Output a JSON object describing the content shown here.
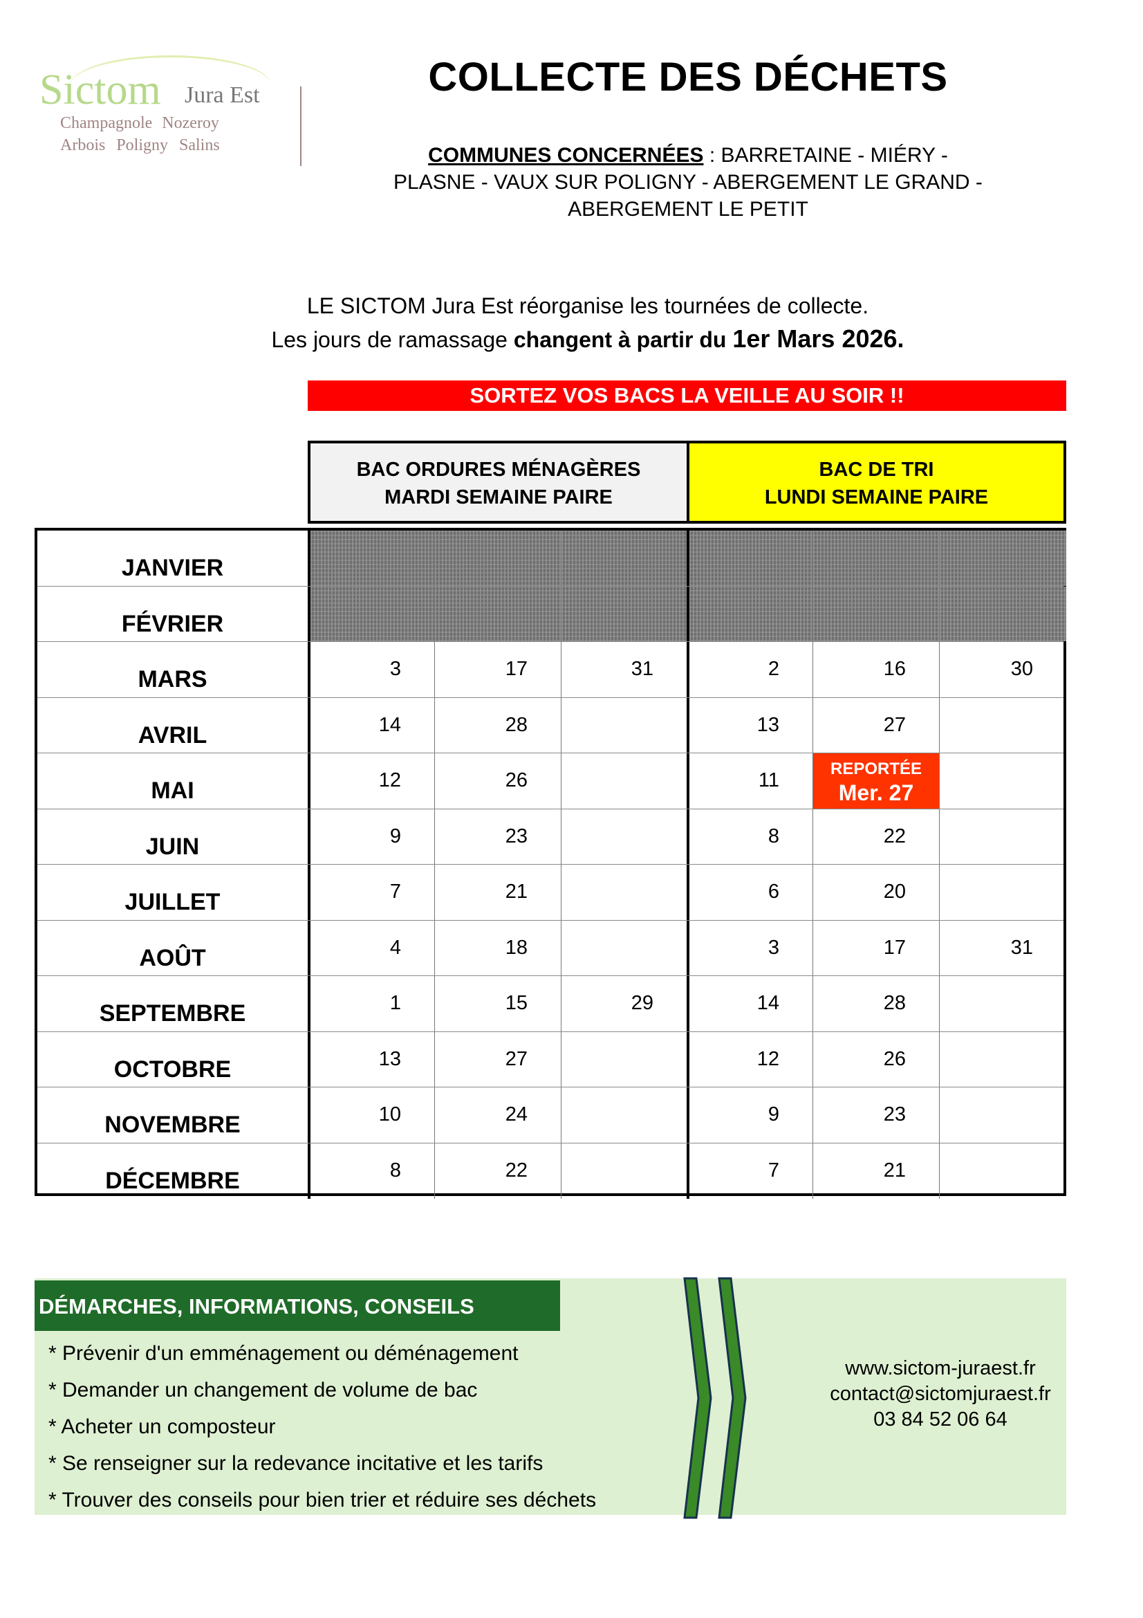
{
  "logo": {
    "line1": "Sictom",
    "line1b": "Jura Est",
    "line2": "Champagnole  Nozeroy",
    "line3": "Arbois  Poligny  Salins"
  },
  "title": "COLLECTE DES DÉCHETS",
  "communes": {
    "label": "COMMUNES CONCERNÉES",
    "text": " : BARRETAINE - MIÉRY - PLASNE - VAUX SUR POLIGNY - ABERGEMENT LE GRAND - ABERGEMENT LE PETIT"
  },
  "intro": {
    "line1": "LE SICTOM Jura Est réorganise les tournées de collecte.",
    "line2_a": "Les jours de ramassage ",
    "line2_b": "changent à partir du ",
    "line2_c": "1er Mars 2026."
  },
  "banner": "SORTEZ VOS BACS LA VEILLE AU SOIR !!",
  "headers": {
    "om": {
      "line1": "BAC ORDURES MÉNAGÈRES",
      "line2": "MARDI SEMAINE PAIRE",
      "color": "#f2f2f2"
    },
    "tri": {
      "line1": "BAC DE TRI",
      "line2": "LUNDI SEMAINE PAIRE",
      "color": "#ffff00"
    }
  },
  "months": [
    {
      "name": "JANVIER",
      "blocked": true,
      "om": [
        "",
        "",
        ""
      ],
      "tri": [
        "",
        "",
        ""
      ]
    },
    {
      "name": "FÉVRIER",
      "blocked": true,
      "om": [
        "",
        "",
        ""
      ],
      "tri": [
        "",
        "",
        ""
      ]
    },
    {
      "name": "MARS",
      "om": [
        "3",
        "17",
        "31"
      ],
      "tri": [
        "2",
        "16",
        "30"
      ]
    },
    {
      "name": "AVRIL",
      "om": [
        "14",
        "28",
        ""
      ],
      "tri": [
        "13",
        "27",
        ""
      ]
    },
    {
      "name": "MAI",
      "om": [
        "12",
        "26",
        ""
      ],
      "tri": [
        "11",
        {
          "label": "REPORTÉE",
          "value": "Mer. 27"
        },
        ""
      ]
    },
    {
      "name": "JUIN",
      "om": [
        "9",
        "23",
        ""
      ],
      "tri": [
        "8",
        "22",
        ""
      ]
    },
    {
      "name": "JUILLET",
      "om": [
        "7",
        "21",
        ""
      ],
      "tri": [
        "6",
        "20",
        ""
      ]
    },
    {
      "name": "AOÛT",
      "om": [
        "4",
        "18",
        ""
      ],
      "tri": [
        "3",
        "17",
        "31"
      ]
    },
    {
      "name": "SEPTEMBRE",
      "om": [
        "1",
        "15",
        "29"
      ],
      "tri": [
        "14",
        "28",
        ""
      ]
    },
    {
      "name": "OCTOBRE",
      "om": [
        "13",
        "27",
        ""
      ],
      "tri": [
        "12",
        "26",
        ""
      ]
    },
    {
      "name": "NOVEMBRE",
      "om": [
        "10",
        "24",
        ""
      ],
      "tri": [
        "9",
        "23",
        ""
      ]
    },
    {
      "name": "DÉCEMBRE",
      "om": [
        "8",
        "22",
        ""
      ],
      "tri": [
        "7",
        "21",
        ""
      ]
    }
  ],
  "info": {
    "title": "DÉMARCHES, INFORMATIONS, CONSEILS",
    "items": [
      "* Prévenir d'un emménagement ou déménagement",
      "* Demander un changement de volume de bac",
      "* Acheter un composteur",
      "* Se renseigner sur la redevance incitative et les tarifs",
      "* Trouver des conseils pour bien trier et réduire ses déchets"
    ],
    "website": "www.sictom-juraest.fr",
    "email": "contact@sictomjuraest.fr",
    "phone": "03 84 52 06 64"
  },
  "colors": {
    "banner": "#ff0000",
    "postponed": "#ff3300",
    "info_header": "#1f6b29",
    "info_bg": "#def0d2"
  }
}
